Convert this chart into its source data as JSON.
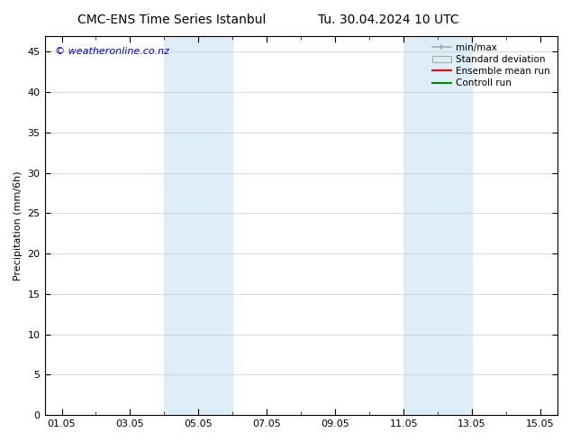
{
  "title_left": "CMC-ENS Time Series Istanbul",
  "title_right": "Tu. 30.04.2024 10 UTC",
  "ylabel": "Precipitation (mm/6h)",
  "watermark": "© weatheronline.co.nz",
  "watermark_color": "#0000cc",
  "xmin": 0.5,
  "xmax": 15.5,
  "ymin": 0,
  "ymax": 47,
  "yticks": [
    0,
    5,
    10,
    15,
    20,
    25,
    30,
    35,
    40,
    45
  ],
  "xtick_labels": [
    "01.05",
    "03.05",
    "05.05",
    "07.05",
    "09.05",
    "11.05",
    "13.05",
    "15.05"
  ],
  "xtick_positions": [
    1,
    3,
    5,
    7,
    9,
    11,
    13,
    15
  ],
  "shaded_bands": [
    {
      "xmin": 4.0,
      "xmax": 6.0
    },
    {
      "xmin": 11.0,
      "xmax": 13.0
    }
  ],
  "band_color": "#ddeef8",
  "legend_items": [
    {
      "label": "min/max",
      "color": "#aaaaaa",
      "style": "minmax"
    },
    {
      "label": "Standard deviation",
      "color": "#cccccc",
      "style": "stddev"
    },
    {
      "label": "Ensemble mean run",
      "color": "#ff0000",
      "style": "line"
    },
    {
      "label": "Controll run",
      "color": "#008800",
      "style": "line"
    }
  ],
  "background_color": "#ffffff",
  "grid_color": "#cccccc",
  "title_fontsize": 10,
  "axis_label_fontsize": 8,
  "tick_label_fontsize": 8,
  "legend_fontsize": 7.5,
  "watermark_fontsize": 8
}
